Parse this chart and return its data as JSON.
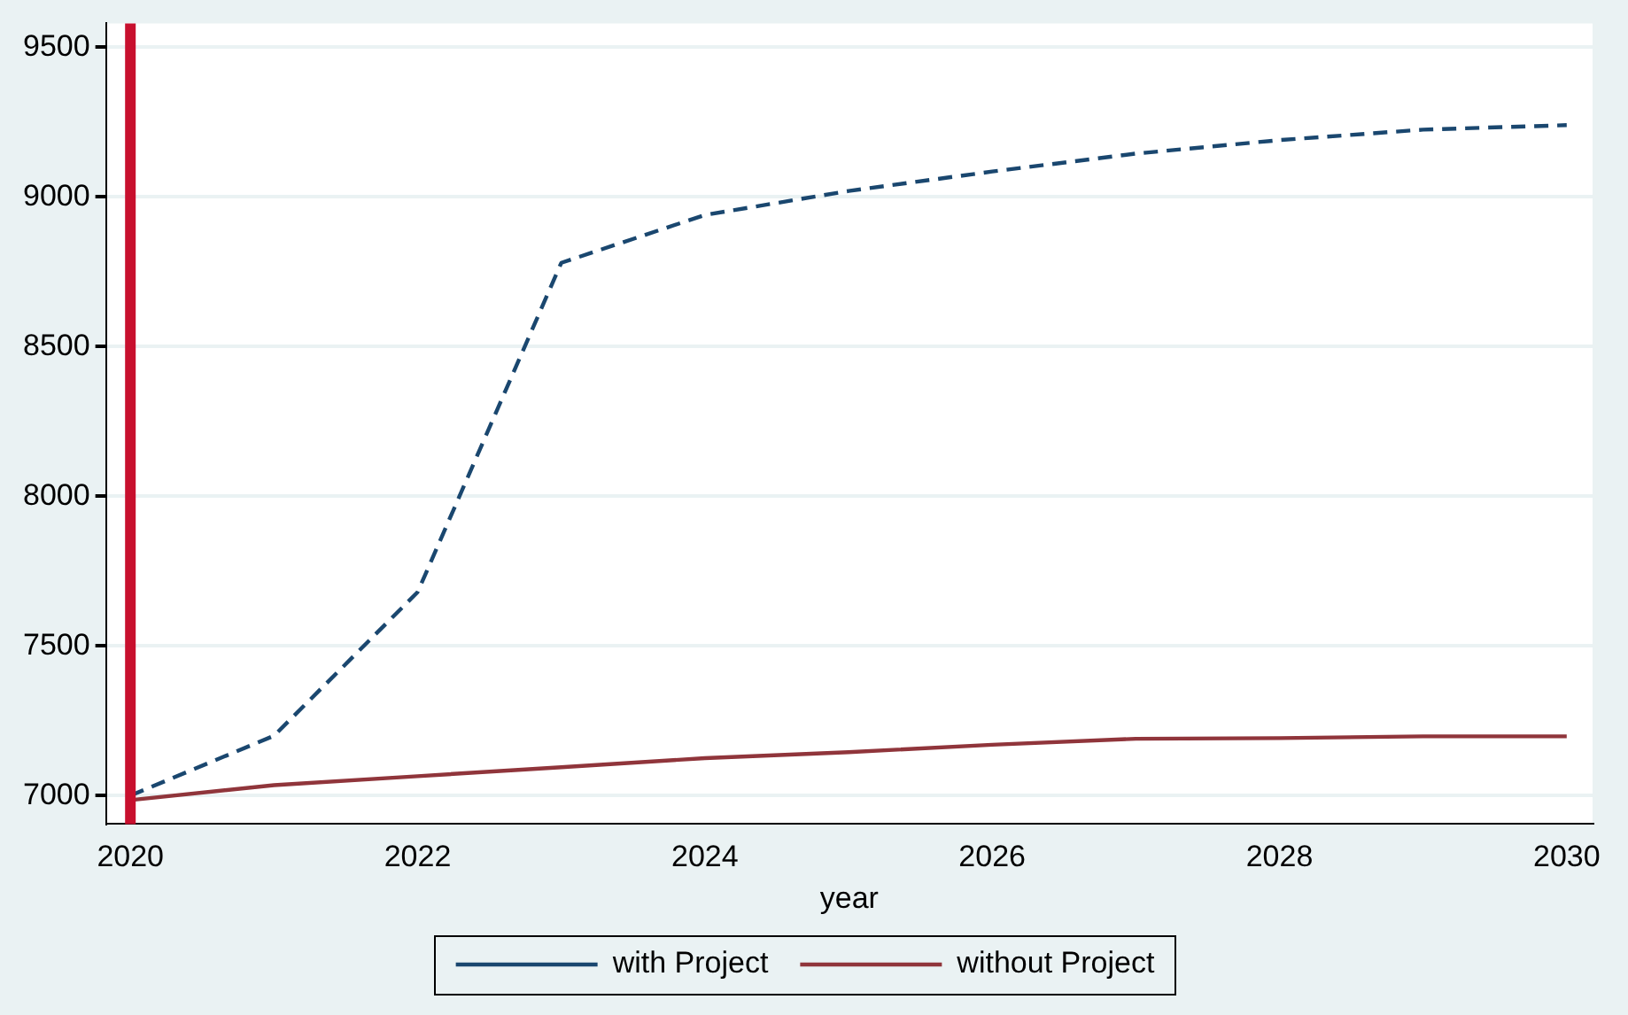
{
  "chart_data": {
    "type": "line",
    "xlabel": "year",
    "x": [
      2020,
      2021,
      2022,
      2023,
      2024,
      2025,
      2026,
      2027,
      2028,
      2029,
      2030
    ],
    "series": [
      {
        "name": "with Project",
        "color": "#1a476f",
        "line_style": "dashed",
        "values": [
          7000,
          7200,
          7680,
          8780,
          8940,
          9020,
          9085,
          9145,
          9190,
          9225,
          9240
        ]
      },
      {
        "name": "without Project",
        "color": "#90353b",
        "line_style": "solid",
        "values": [
          6985,
          7035,
          7065,
          7095,
          7125,
          7145,
          7170,
          7190,
          7192,
          7198,
          7198
        ]
      }
    ],
    "xlim": [
      2019.83,
      2030.18
    ],
    "xticks": [
      2020,
      2022,
      2024,
      2026,
      2028,
      2030
    ],
    "ylim": [
      6905,
      9580
    ],
    "yticks": [
      7000,
      7500,
      8000,
      8500,
      9000,
      9500
    ],
    "ref_lines": [
      {
        "axis": "x",
        "value": 2020,
        "color": "#c8102e"
      }
    ],
    "grid": "y",
    "legend": "bottom",
    "marker": "none"
  }
}
